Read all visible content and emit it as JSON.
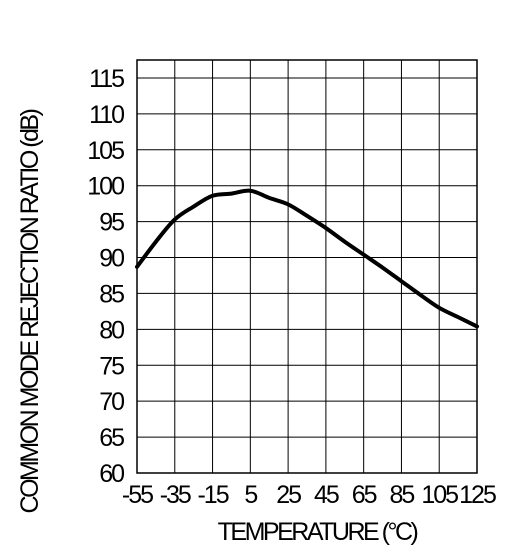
{
  "chart_data": {
    "type": "line",
    "title": "",
    "xlabel": "TEMPERATURE (°C)",
    "ylabel": "COMMON MODE REJECTION RATIO (dB)",
    "x_ticks": [
      "-55",
      "-35",
      "-15",
      "5",
      "25",
      "45",
      "65",
      "85",
      "105",
      "125"
    ],
    "y_ticks": [
      "60",
      "65",
      "70",
      "75",
      "80",
      "85",
      "90",
      "95",
      "100",
      "105",
      "110",
      "115"
    ],
    "xlim": [
      -55,
      125
    ],
    "ylim": [
      60,
      117.5
    ],
    "grid": true,
    "line_color": "#000000",
    "series": [
      {
        "x": [
          -55,
          -45,
          -35,
          -25,
          -15,
          -5,
          5,
          15,
          25,
          35,
          45,
          55,
          65,
          75,
          85,
          95,
          105,
          115,
          125
        ],
        "y": [
          88.7,
          92.2,
          95.3,
          97.1,
          98.6,
          98.9,
          99.3,
          98.3,
          97.4,
          95.8,
          94.1,
          92.2,
          90.4,
          88.6,
          86.7,
          84.8,
          83.0,
          81.7,
          80.4
        ]
      }
    ]
  }
}
